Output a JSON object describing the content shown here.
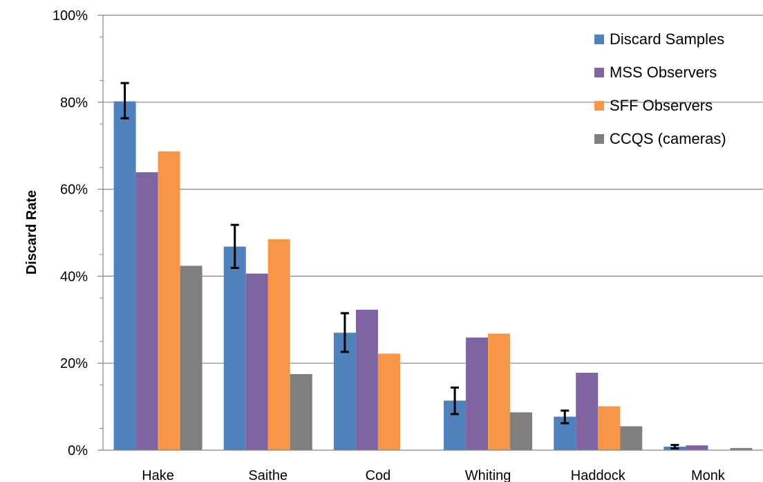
{
  "chart_data": {
    "type": "bar",
    "title": "",
    "xlabel": "",
    "ylabel": "Discard Rate",
    "ylim": [
      0,
      100
    ],
    "yticks": [
      "0%",
      "20%",
      "40%",
      "60%",
      "80%",
      "100%"
    ],
    "ytick_values": [
      0,
      20,
      40,
      60,
      80,
      100
    ],
    "categories": [
      "Hake",
      "Saithe",
      "Cod",
      "Whiting",
      "Haddock",
      "Monk"
    ],
    "series": [
      {
        "name": "Discard Samples",
        "color": "#4f81bd",
        "values": [
          80.2,
          46.8,
          27.0,
          11.4,
          7.7,
          0.8
        ],
        "error_low": [
          76.3,
          41.9,
          22.6,
          8.3,
          6.2,
          0.4
        ],
        "error_high": [
          84.4,
          51.8,
          31.5,
          14.4,
          9.1,
          1.2
        ]
      },
      {
        "name": "MSS Observers",
        "color": "#8064a2",
        "values": [
          63.9,
          40.6,
          32.3,
          25.9,
          17.8,
          1.1
        ]
      },
      {
        "name": "SFF Observers",
        "color": "#f79646",
        "values": [
          68.7,
          48.5,
          22.2,
          26.8,
          10.1,
          0
        ]
      },
      {
        "name": "CCQS (cameras)",
        "color": "#7f7f7f",
        "values": [
          42.4,
          17.5,
          0,
          8.7,
          5.5,
          0.5
        ]
      }
    ],
    "grid": true,
    "legend_position": "top-right"
  }
}
